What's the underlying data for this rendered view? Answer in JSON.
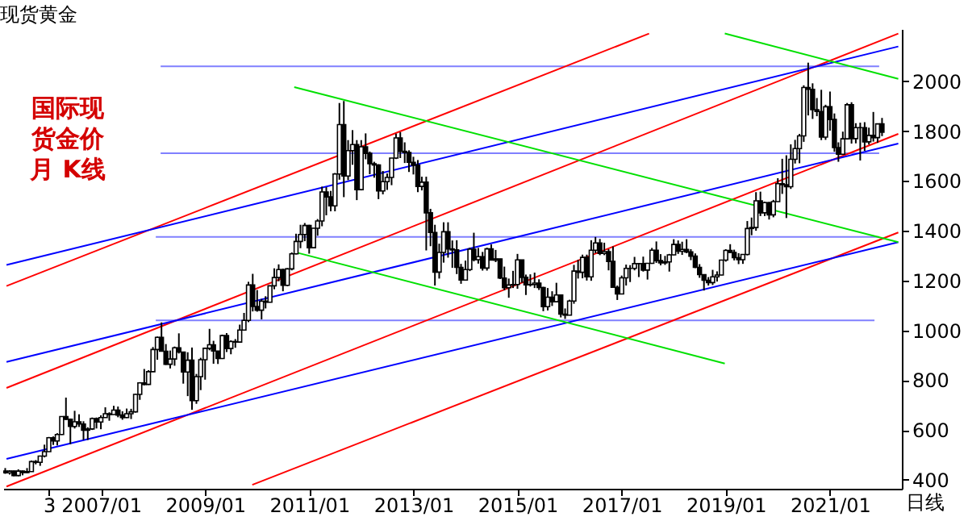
{
  "chart_data": {
    "type": "candlestick",
    "title": "现货黄金",
    "xlabel": "日线",
    "annotations": [
      "国际现货金价月 K线"
    ],
    "xlim": [
      "2005-02-15",
      "2022-05-20"
    ],
    "xticks": [
      {
        "value": "2006-01",
        "label": "3"
      },
      {
        "value": "2007-01",
        "label": "2007/01"
      },
      {
        "value": "2009-01",
        "label": "2009/01"
      },
      {
        "value": "2011-01",
        "label": "2011/01"
      },
      {
        "value": "2013-01",
        "label": "2013/01"
      },
      {
        "value": "2015-01",
        "label": "2015/01"
      },
      {
        "value": "2017-01",
        "label": "2017/01"
      },
      {
        "value": "2019-01",
        "label": "2019/01"
      },
      {
        "value": "2021-01",
        "label": "2021/01"
      }
    ],
    "ylim": [
      364,
      2210
    ],
    "yticks": [
      400,
      600,
      800,
      1000,
      1200,
      1400,
      1600,
      1800,
      2000
    ],
    "grid": false,
    "x": [
      "2005-03",
      "2005-04",
      "2005-05",
      "2005-06",
      "2005-07",
      "2005-08",
      "2005-09",
      "2005-10",
      "2005-11",
      "2005-12",
      "2006-01",
      "2006-02",
      "2006-03",
      "2006-04",
      "2006-05",
      "2006-06",
      "2006-07",
      "2006-08",
      "2006-09",
      "2006-10",
      "2006-11",
      "2006-12",
      "2007-01",
      "2007-02",
      "2007-03",
      "2007-04",
      "2007-05",
      "2007-06",
      "2007-07",
      "2007-08",
      "2007-09",
      "2007-10",
      "2007-11",
      "2007-12",
      "2008-01",
      "2008-02",
      "2008-03",
      "2008-04",
      "2008-05",
      "2008-06",
      "2008-07",
      "2008-08",
      "2008-09",
      "2008-10",
      "2008-11",
      "2008-12",
      "2009-01",
      "2009-02",
      "2009-03",
      "2009-04",
      "2009-05",
      "2009-06",
      "2009-07",
      "2009-08",
      "2009-09",
      "2009-10",
      "2009-11",
      "2009-12",
      "2010-01",
      "2010-02",
      "2010-03",
      "2010-04",
      "2010-05",
      "2010-06",
      "2010-07",
      "2010-08",
      "2010-09",
      "2010-10",
      "2010-11",
      "2010-12",
      "2011-01",
      "2011-02",
      "2011-03",
      "2011-04",
      "2011-05",
      "2011-06",
      "2011-07",
      "2011-08",
      "2011-09",
      "2011-10",
      "2011-11",
      "2011-12",
      "2012-01",
      "2012-02",
      "2012-03",
      "2012-04",
      "2012-05",
      "2012-06",
      "2012-07",
      "2012-08",
      "2012-09",
      "2012-10",
      "2012-11",
      "2012-12",
      "2013-01",
      "2013-02",
      "2013-03",
      "2013-04",
      "2013-05",
      "2013-06",
      "2013-07",
      "2013-08",
      "2013-09",
      "2013-10",
      "2013-11",
      "2013-12",
      "2014-01",
      "2014-02",
      "2014-03",
      "2014-04",
      "2014-05",
      "2014-06",
      "2014-07",
      "2014-08",
      "2014-09",
      "2014-10",
      "2014-11",
      "2014-12",
      "2015-01",
      "2015-02",
      "2015-03",
      "2015-04",
      "2015-05",
      "2015-06",
      "2015-07",
      "2015-08",
      "2015-09",
      "2015-10",
      "2015-11",
      "2015-12",
      "2016-01",
      "2016-02",
      "2016-03",
      "2016-04",
      "2016-05",
      "2016-06",
      "2016-07",
      "2016-08",
      "2016-09",
      "2016-10",
      "2016-11",
      "2016-12",
      "2017-01",
      "2017-02",
      "2017-03",
      "2017-04",
      "2017-05",
      "2017-06",
      "2017-07",
      "2017-08",
      "2017-09",
      "2017-10",
      "2017-11",
      "2017-12",
      "2018-01",
      "2018-02",
      "2018-03",
      "2018-04",
      "2018-05",
      "2018-06",
      "2018-07",
      "2018-08",
      "2018-09",
      "2018-10",
      "2018-11",
      "2018-12",
      "2019-01",
      "2019-02",
      "2019-03",
      "2019-04",
      "2019-05",
      "2019-06",
      "2019-07",
      "2019-08",
      "2019-09",
      "2019-10",
      "2019-11",
      "2019-12",
      "2020-01",
      "2020-02",
      "2020-03",
      "2020-04",
      "2020-05",
      "2020-06",
      "2020-07",
      "2020-08",
      "2020-09",
      "2020-10",
      "2020-11",
      "2020-12",
      "2021-01",
      "2021-02",
      "2021-03",
      "2021-04",
      "2021-05",
      "2021-06",
      "2021-07",
      "2021-08",
      "2021-09",
      "2021-10",
      "2021-11",
      "2021-12",
      "2022-01"
    ],
    "ohlc": [
      [
        435,
        447,
        424,
        428
      ],
      [
        428,
        438,
        421,
        435
      ],
      [
        435,
        437,
        414,
        417
      ],
      [
        417,
        442,
        414,
        435
      ],
      [
        435,
        437,
        418,
        429
      ],
      [
        429,
        447,
        427,
        433
      ],
      [
        433,
        477,
        432,
        473
      ],
      [
        473,
        479,
        462,
        470
      ],
      [
        470,
        497,
        456,
        495
      ],
      [
        495,
        541,
        490,
        513
      ],
      [
        513,
        572,
        513,
        569
      ],
      [
        569,
        574,
        540,
        556
      ],
      [
        556,
        587,
        538,
        582
      ],
      [
        582,
        655,
        580,
        654
      ],
      [
        654,
        730,
        640,
        643
      ],
      [
        643,
        646,
        543,
        614
      ],
      [
        614,
        677,
        606,
        633
      ],
      [
        633,
        663,
        612,
        624
      ],
      [
        624,
        635,
        560,
        599
      ],
      [
        599,
        611,
        560,
        604
      ],
      [
        604,
        650,
        600,
        646
      ],
      [
        646,
        650,
        606,
        632
      ],
      [
        632,
        659,
        603,
        650
      ],
      [
        650,
        691,
        650,
        665
      ],
      [
        665,
        671,
        637,
        662
      ],
      [
        662,
        697,
        662,
        680
      ],
      [
        680,
        694,
        651,
        660
      ],
      [
        660,
        675,
        641,
        650
      ],
      [
        650,
        686,
        648,
        665
      ],
      [
        665,
        685,
        644,
        673
      ],
      [
        673,
        745,
        670,
        743
      ],
      [
        743,
        792,
        721,
        789
      ],
      [
        789,
        845,
        779,
        783
      ],
      [
        783,
        840,
        781,
        834
      ],
      [
        834,
        933,
        833,
        923
      ],
      [
        923,
        975,
        882,
        972
      ],
      [
        972,
        1032,
        915,
        916
      ],
      [
        916,
        945,
        861,
        864
      ],
      [
        864,
        919,
        847,
        885
      ],
      [
        885,
        935,
        858,
        930
      ],
      [
        930,
        988,
        907,
        913
      ],
      [
        913,
        914,
        786,
        833
      ],
      [
        833,
        912,
        736,
        880
      ],
      [
        880,
        931,
        681,
        718
      ],
      [
        718,
        825,
        705,
        814
      ],
      [
        814,
        890,
        760,
        882
      ],
      [
        882,
        931,
        802,
        928
      ],
      [
        928,
        1006,
        920,
        942
      ],
      [
        942,
        958,
        866,
        917
      ],
      [
        917,
        918,
        865,
        887
      ],
      [
        887,
        983,
        885,
        979
      ],
      [
        979,
        989,
        913,
        927
      ],
      [
        927,
        960,
        904,
        955
      ],
      [
        955,
        965,
        930,
        953
      ],
      [
        953,
        1023,
        950,
        1001
      ],
      [
        1001,
        1070,
        1000,
        1040
      ],
      [
        1040,
        1195,
        1033,
        1182
      ],
      [
        1182,
        1227,
        1076,
        1096
      ],
      [
        1096,
        1162,
        1075,
        1081
      ],
      [
        1081,
        1126,
        1044,
        1117
      ],
      [
        1117,
        1137,
        1088,
        1113
      ],
      [
        1113,
        1180,
        1112,
        1179
      ],
      [
        1179,
        1249,
        1165,
        1212
      ],
      [
        1212,
        1265,
        1197,
        1244
      ],
      [
        1244,
        1248,
        1157,
        1181
      ],
      [
        1181,
        1250,
        1177,
        1247
      ],
      [
        1247,
        1313,
        1241,
        1307
      ],
      [
        1307,
        1388,
        1305,
        1357
      ],
      [
        1357,
        1424,
        1330,
        1385
      ],
      [
        1385,
        1431,
        1358,
        1421
      ],
      [
        1421,
        1424,
        1308,
        1332
      ],
      [
        1332,
        1411,
        1330,
        1410
      ],
      [
        1410,
        1447,
        1380,
        1439
      ],
      [
        1439,
        1577,
        1418,
        1556
      ],
      [
        1556,
        1575,
        1462,
        1536
      ],
      [
        1536,
        1560,
        1478,
        1500
      ],
      [
        1500,
        1632,
        1478,
        1628
      ],
      [
        1628,
        1913,
        1605,
        1826
      ],
      [
        1826,
        1921,
        1535,
        1620
      ],
      [
        1620,
        1764,
        1603,
        1722
      ],
      [
        1722,
        1804,
        1665,
        1746
      ],
      [
        1746,
        1764,
        1523,
        1565
      ],
      [
        1565,
        1764,
        1562,
        1737
      ],
      [
        1737,
        1791,
        1687,
        1711
      ],
      [
        1711,
        1718,
        1627,
        1669
      ],
      [
        1669,
        1677,
        1613,
        1664
      ],
      [
        1664,
        1667,
        1527,
        1560
      ],
      [
        1560,
        1640,
        1546,
        1597
      ],
      [
        1597,
        1630,
        1564,
        1614
      ],
      [
        1614,
        1692,
        1583,
        1692
      ],
      [
        1692,
        1790,
        1688,
        1773
      ],
      [
        1773,
        1796,
        1692,
        1719
      ],
      [
        1719,
        1755,
        1672,
        1714
      ],
      [
        1714,
        1723,
        1636,
        1675
      ],
      [
        1675,
        1697,
        1626,
        1663
      ],
      [
        1663,
        1684,
        1555,
        1578
      ],
      [
        1578,
        1617,
        1562,
        1595
      ],
      [
        1595,
        1617,
        1321,
        1472
      ],
      [
        1472,
        1488,
        1338,
        1393
      ],
      [
        1393,
        1424,
        1180,
        1234
      ],
      [
        1234,
        1348,
        1208,
        1313
      ],
      [
        1313,
        1434,
        1272,
        1396
      ],
      [
        1396,
        1434,
        1292,
        1327
      ],
      [
        1327,
        1361,
        1251,
        1323
      ],
      [
        1323,
        1362,
        1226,
        1253
      ],
      [
        1253,
        1267,
        1187,
        1202
      ],
      [
        1202,
        1280,
        1202,
        1244
      ],
      [
        1244,
        1332,
        1238,
        1326
      ],
      [
        1326,
        1392,
        1277,
        1284
      ],
      [
        1284,
        1331,
        1268,
        1296
      ],
      [
        1296,
        1315,
        1240,
        1250
      ],
      [
        1250,
        1332,
        1240,
        1327
      ],
      [
        1327,
        1345,
        1281,
        1282
      ],
      [
        1282,
        1323,
        1274,
        1287
      ],
      [
        1287,
        1288,
        1206,
        1210
      ],
      [
        1210,
        1256,
        1161,
        1171
      ],
      [
        1171,
        1208,
        1131,
        1182
      ],
      [
        1182,
        1239,
        1170,
        1184
      ],
      [
        1184,
        1307,
        1167,
        1283
      ],
      [
        1283,
        1284,
        1191,
        1213
      ],
      [
        1213,
        1224,
        1142,
        1183
      ],
      [
        1183,
        1225,
        1176,
        1184
      ],
      [
        1184,
        1232,
        1170,
        1190
      ],
      [
        1190,
        1205,
        1162,
        1172
      ],
      [
        1172,
        1175,
        1077,
        1095
      ],
      [
        1095,
        1170,
        1080,
        1133
      ],
      [
        1133,
        1157,
        1098,
        1115
      ],
      [
        1115,
        1191,
        1113,
        1142
      ],
      [
        1142,
        1143,
        1052,
        1065
      ],
      [
        1065,
        1088,
        1046,
        1061
      ],
      [
        1061,
        1123,
        1061,
        1118
      ],
      [
        1118,
        1263,
        1107,
        1238
      ],
      [
        1238,
        1283,
        1208,
        1233
      ],
      [
        1233,
        1304,
        1209,
        1293
      ],
      [
        1293,
        1304,
        1200,
        1215
      ],
      [
        1215,
        1362,
        1199,
        1322
      ],
      [
        1322,
        1375,
        1310,
        1351
      ],
      [
        1351,
        1367,
        1302,
        1309
      ],
      [
        1309,
        1352,
        1302,
        1316
      ],
      [
        1316,
        1326,
        1241,
        1277
      ],
      [
        1277,
        1337,
        1171,
        1173
      ],
      [
        1173,
        1180,
        1122,
        1146
      ],
      [
        1146,
        1220,
        1146,
        1211
      ],
      [
        1211,
        1264,
        1180,
        1249
      ],
      [
        1249,
        1262,
        1194,
        1249
      ],
      [
        1249,
        1295,
        1241,
        1268
      ],
      [
        1268,
        1270,
        1214,
        1268
      ],
      [
        1268,
        1296,
        1236,
        1242
      ],
      [
        1242,
        1270,
        1204,
        1269
      ],
      [
        1269,
        1331,
        1267,
        1322
      ],
      [
        1322,
        1357,
        1271,
        1280
      ],
      [
        1280,
        1306,
        1261,
        1271
      ],
      [
        1271,
        1299,
        1263,
        1275
      ],
      [
        1275,
        1307,
        1236,
        1303
      ],
      [
        1303,
        1366,
        1302,
        1345
      ],
      [
        1345,
        1361,
        1307,
        1318
      ],
      [
        1318,
        1356,
        1303,
        1325
      ],
      [
        1325,
        1366,
        1310,
        1315
      ],
      [
        1315,
        1326,
        1282,
        1298
      ],
      [
        1298,
        1309,
        1250,
        1253
      ],
      [
        1253,
        1266,
        1211,
        1224
      ],
      [
        1224,
        1224,
        1160,
        1201
      ],
      [
        1201,
        1214,
        1180,
        1192
      ],
      [
        1192,
        1243,
        1182,
        1215
      ],
      [
        1215,
        1237,
        1196,
        1222
      ],
      [
        1222,
        1284,
        1221,
        1282
      ],
      [
        1282,
        1326,
        1276,
        1321
      ],
      [
        1321,
        1346,
        1310,
        1313
      ],
      [
        1313,
        1324,
        1281,
        1292
      ],
      [
        1292,
        1310,
        1266,
        1284
      ],
      [
        1284,
        1306,
        1267,
        1305
      ],
      [
        1305,
        1439,
        1301,
        1409
      ],
      [
        1409,
        1453,
        1382,
        1413
      ],
      [
        1413,
        1555,
        1400,
        1520
      ],
      [
        1520,
        1557,
        1459,
        1472
      ],
      [
        1472,
        1517,
        1459,
        1513
      ],
      [
        1513,
        1516,
        1445,
        1464
      ],
      [
        1464,
        1524,
        1454,
        1517
      ],
      [
        1517,
        1611,
        1517,
        1589
      ],
      [
        1589,
        1689,
        1548,
        1585
      ],
      [
        1585,
        1703,
        1451,
        1577
      ],
      [
        1577,
        1747,
        1568,
        1687
      ],
      [
        1687,
        1765,
        1670,
        1730
      ],
      [
        1730,
        1789,
        1671,
        1781
      ],
      [
        1781,
        1984,
        1757,
        1975
      ],
      [
        1975,
        2075,
        1863,
        1968
      ],
      [
        1968,
        1992,
        1849,
        1886
      ],
      [
        1886,
        1933,
        1860,
        1879
      ],
      [
        1879,
        1966,
        1764,
        1776
      ],
      [
        1776,
        1906,
        1765,
        1898
      ],
      [
        1898,
        1959,
        1802,
        1847
      ],
      [
        1847,
        1871,
        1717,
        1734
      ],
      [
        1734,
        1755,
        1677,
        1707
      ],
      [
        1707,
        1798,
        1705,
        1769
      ],
      [
        1769,
        1913,
        1766,
        1906
      ],
      [
        1906,
        1916,
        1750,
        1770
      ],
      [
        1770,
        1832,
        1751,
        1814
      ],
      [
        1814,
        1834,
        1682,
        1814
      ],
      [
        1814,
        1836,
        1721,
        1757
      ],
      [
        1757,
        1814,
        1746,
        1783
      ],
      [
        1783,
        1877,
        1758,
        1774
      ],
      [
        1774,
        1831,
        1753,
        1829
      ],
      [
        1829,
        1853,
        1780,
        1796
      ]
    ],
    "series": [
      {
        "type": "line",
        "color": "#8080ff",
        "x": [
          "2008-02-24",
          "2021-12-12"
        ],
        "values": [
          2060,
          2060
        ]
      },
      {
        "type": "line",
        "color": "#8080ff",
        "x": [
          "2008-02-24",
          "2021-12-12"
        ],
        "values": [
          1711,
          1711
        ]
      },
      {
        "type": "line",
        "color": "#8080ff",
        "x": [
          "2008-01-21",
          "2021-12-12"
        ],
        "values": [
          1375,
          1375
        ]
      },
      {
        "type": "line",
        "color": "#8080ff",
        "x": [
          "2008-01-21",
          "2021-11-09"
        ],
        "values": [
          1040,
          1040
        ]
      },
      {
        "type": "line",
        "color": "#ff0000",
        "x": [
          "2005-03-10",
          "2017-07-12"
        ],
        "values": [
          1178,
          2192
        ]
      },
      {
        "type": "line",
        "color": "#ff0000",
        "x": [
          "2005-03-10",
          "2022-04-25"
        ],
        "values": [
          769,
          2192
        ]
      },
      {
        "type": "line",
        "color": "#ff0000",
        "x": [
          "2005-03-10",
          "2022-04-25"
        ],
        "values": [
          373,
          1789
        ]
      },
      {
        "type": "line",
        "color": "#ff0000",
        "x": [
          "2009-11-28",
          "2022-04-25"
        ],
        "values": [
          380,
          1393
        ]
      },
      {
        "type": "line",
        "color": "#0000ff",
        "x": [
          "2005-03-10",
          "2022-04-25"
        ],
        "values": [
          1263,
          2140
        ]
      },
      {
        "type": "line",
        "color": "#0000ff",
        "x": [
          "2005-03-10",
          "2022-04-25"
        ],
        "values": [
          873,
          1750
        ]
      },
      {
        "type": "line",
        "color": "#0000ff",
        "x": [
          "2005-03-10",
          "2022-04-25"
        ],
        "values": [
          484,
          1354
        ]
      },
      {
        "type": "line",
        "color": "#00e000",
        "x": [
          "2010-09-18",
          "2022-04-25"
        ],
        "values": [
          1977,
          1354
        ]
      },
      {
        "type": "line",
        "color": "#00e000",
        "x": [
          "2010-09-18",
          "2018-12-25"
        ],
        "values": [
          1315,
          867
        ]
      },
      {
        "type": "line",
        "color": "#00e000",
        "x": [
          "2018-12-25",
          "2022-04-25"
        ],
        "values": [
          2192,
          2010
        ]
      }
    ]
  }
}
